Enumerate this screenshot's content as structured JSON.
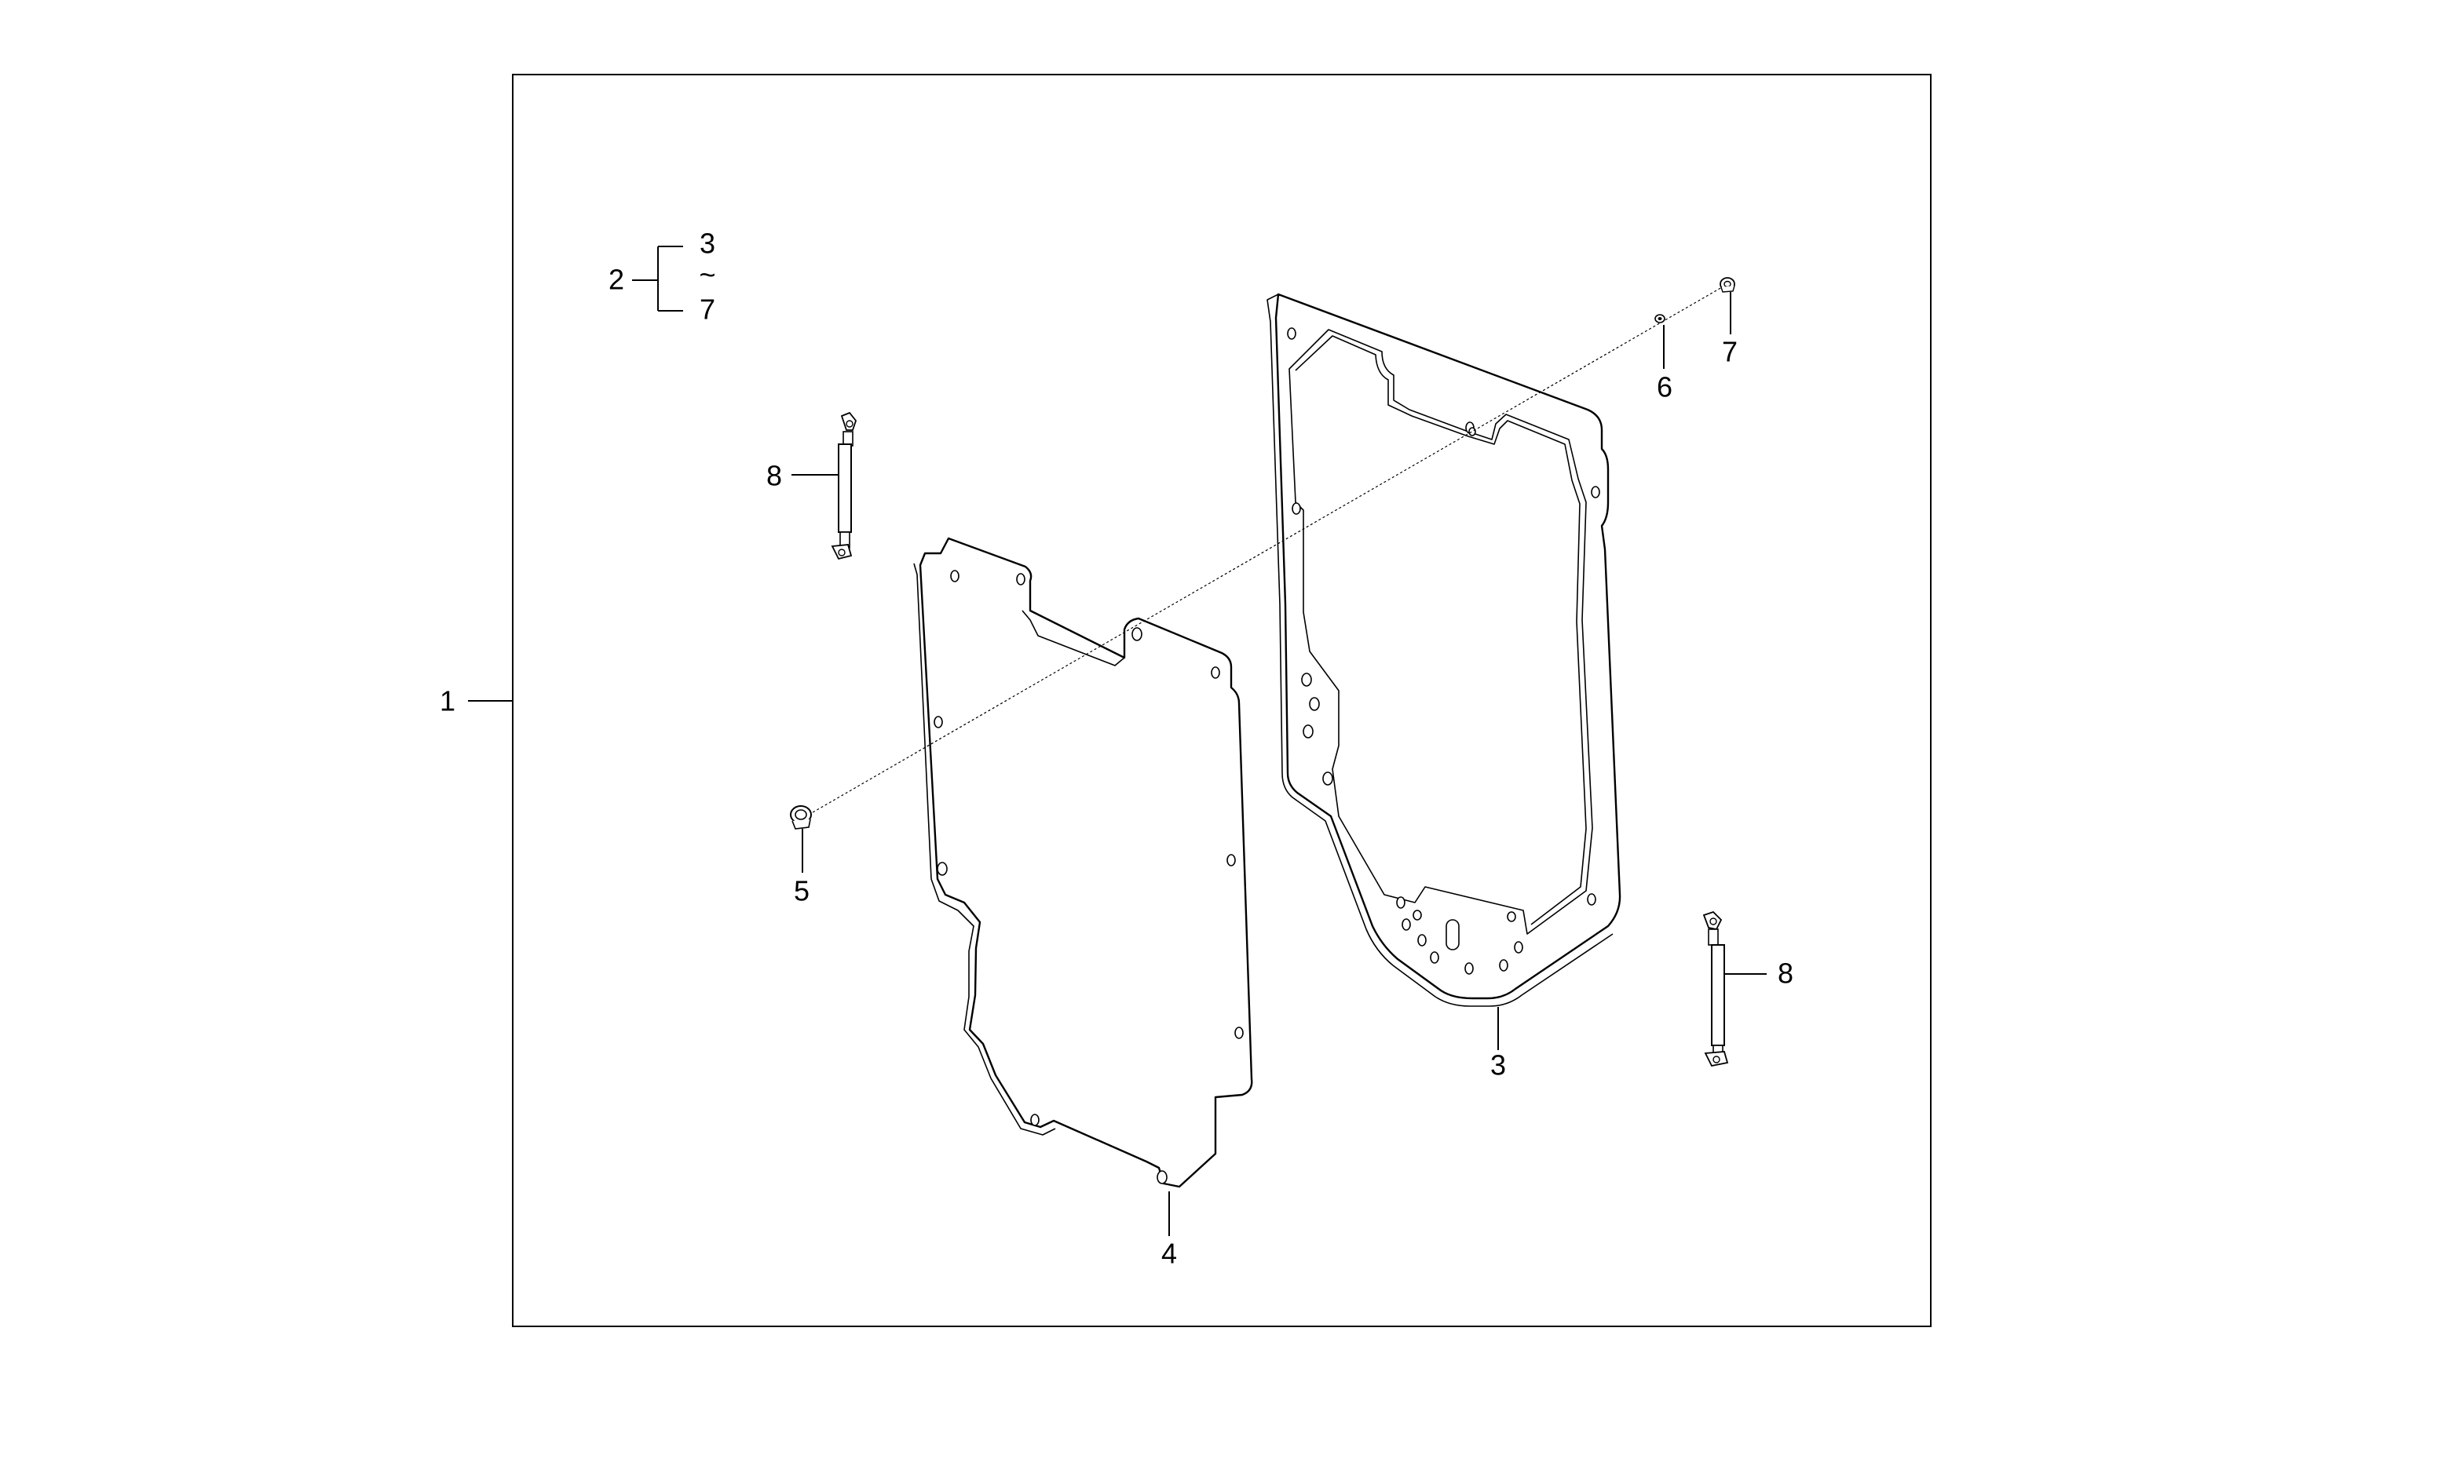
{
  "callouts": {
    "assembly": "1",
    "kit": "2",
    "kit_from": "3",
    "kit_tilde": "~",
    "kit_to": "7",
    "frame": "3",
    "panel": "4",
    "screw": "5",
    "washer": "6",
    "cap": "7",
    "gas_spring_left": "8",
    "gas_spring_right": "8"
  }
}
